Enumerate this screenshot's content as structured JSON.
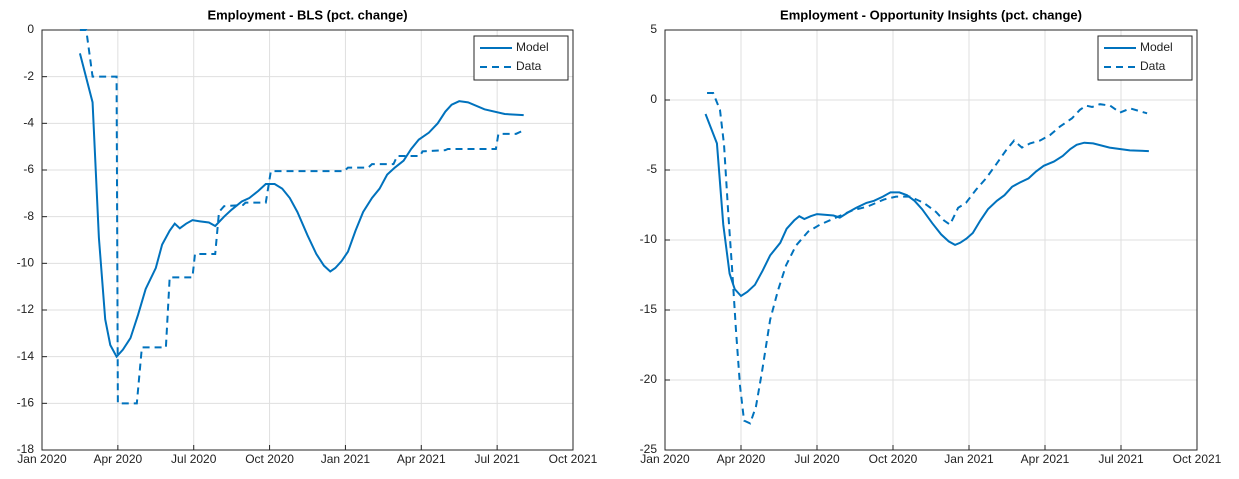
{
  "chart_data": [
    {
      "type": "line",
      "title": "Employment - BLS (pct. change)",
      "xlim": [
        0,
        21
      ],
      "xticks": [
        {
          "value": 0,
          "label": "Jan 2020"
        },
        {
          "value": 3,
          "label": "Apr 2020"
        },
        {
          "value": 6,
          "label": "Jul 2020"
        },
        {
          "value": 9,
          "label": "Oct 2020"
        },
        {
          "value": 12,
          "label": "Jan 2021"
        },
        {
          "value": 15,
          "label": "Apr 2021"
        },
        {
          "value": 18,
          "label": "Jul 2021"
        },
        {
          "value": 21,
          "label": "Oct 2021"
        }
      ],
      "ylim": [
        -18,
        0
      ],
      "yticks": [
        -18,
        -16,
        -14,
        -12,
        -10,
        -8,
        -6,
        -4,
        -2,
        0
      ],
      "grid": true,
      "legend": "top-right",
      "series": [
        {
          "name": "Model",
          "color": "#0072bd",
          "dash": "solid",
          "x": [
            1.5,
            2.0,
            2.25,
            2.5,
            2.7,
            2.95,
            3.2,
            3.5,
            3.8,
            4.1,
            4.5,
            4.75,
            5.05,
            5.25,
            5.45,
            5.7,
            5.95,
            6.25,
            6.6,
            6.85,
            7.2,
            7.5,
            7.9,
            8.2,
            8.55,
            8.85,
            9.2,
            9.5,
            9.8,
            10.1,
            10.5,
            10.85,
            11.15,
            11.4,
            11.6,
            11.85,
            12.1,
            12.4,
            12.7,
            13.05,
            13.35,
            13.65,
            13.95,
            14.3,
            14.6,
            14.9,
            15.3,
            15.65,
            15.95,
            16.2,
            16.5,
            16.85,
            17.5,
            18.3,
            19.05
          ],
          "values": [
            -1,
            -3.1,
            -8.9,
            -12.4,
            -13.5,
            -14,
            -13.7,
            -13.2,
            -12.2,
            -11.1,
            -10.2,
            -9.2,
            -8.6,
            -8.3,
            -8.5,
            -8.3,
            -8.15,
            -8.2,
            -8.25,
            -8.4,
            -8,
            -7.7,
            -7.35,
            -7.2,
            -6.9,
            -6.6,
            -6.6,
            -6.8,
            -7.2,
            -7.8,
            -8.8,
            -9.6,
            -10.1,
            -10.35,
            -10.2,
            -9.9,
            -9.5,
            -8.6,
            -7.8,
            -7.2,
            -6.8,
            -6.2,
            -5.9,
            -5.6,
            -5.1,
            -4.7,
            -4.4,
            -4,
            -3.5,
            -3.2,
            -3.05,
            -3.1,
            -3.4,
            -3.6,
            -3.65
          ]
        },
        {
          "name": "Data",
          "color": "#0072bd",
          "dash": "dashed",
          "x": [
            1.5,
            1.75,
            2.0,
            2.95,
            3.0,
            3.75,
            3.95,
            4.9,
            5.05,
            5.95,
            6.05,
            6.85,
            7.0,
            7.2,
            7.95,
            8.05,
            8.85,
            9.05,
            11.95,
            12.1,
            12.9,
            13.05,
            13.9,
            14.05,
            14.95,
            15.05,
            15.95,
            16.05,
            17.95,
            18.05,
            18.75,
            19.05
          ],
          "values": [
            0,
            0,
            -2,
            -2,
            -16,
            -16,
            -13.6,
            -13.6,
            -10.6,
            -10.6,
            -9.6,
            -9.6,
            -7.8,
            -7.55,
            -7.5,
            -7.4,
            -7.4,
            -6.05,
            -6.05,
            -5.9,
            -5.9,
            -5.75,
            -5.75,
            -5.4,
            -5.4,
            -5.2,
            -5.15,
            -5.1,
            -5.1,
            -4.45,
            -4.45,
            -4.3
          ]
        }
      ]
    },
    {
      "type": "line",
      "title": "Employment - Opportunity Insights (pct. change)",
      "xlim": [
        0,
        21
      ],
      "xticks": [
        {
          "value": 0,
          "label": "Jan 2020"
        },
        {
          "value": 3,
          "label": "Apr 2020"
        },
        {
          "value": 6,
          "label": "Jul 2020"
        },
        {
          "value": 9,
          "label": "Oct 2020"
        },
        {
          "value": 12,
          "label": "Jan 2021"
        },
        {
          "value": 15,
          "label": "Apr 2021"
        },
        {
          "value": 18,
          "label": "Jul 2021"
        },
        {
          "value": 21,
          "label": "Oct 2021"
        }
      ],
      "ylim": [
        -25,
        5
      ],
      "yticks": [
        -25,
        -20,
        -15,
        -10,
        -5,
        0,
        5
      ],
      "grid": true,
      "legend": "top-right",
      "series": [
        {
          "name": "Model",
          "color": "#0072bd",
          "dash": "solid",
          "x": [
            1.6,
            2.05,
            2.3,
            2.55,
            2.75,
            3.0,
            3.25,
            3.55,
            3.85,
            4.15,
            4.55,
            4.8,
            5.1,
            5.3,
            5.5,
            5.75,
            6.0,
            6.3,
            6.65,
            6.9,
            7.25,
            7.55,
            7.95,
            8.25,
            8.6,
            8.9,
            9.25,
            9.55,
            9.85,
            10.15,
            10.55,
            10.9,
            11.2,
            11.45,
            11.65,
            11.9,
            12.15,
            12.45,
            12.75,
            13.1,
            13.4,
            13.7,
            14.0,
            14.35,
            14.65,
            14.95,
            15.35,
            15.7,
            16.0,
            16.25,
            16.55,
            16.9,
            17.55,
            18.35,
            19.1
          ],
          "values": [
            -1,
            -3.1,
            -8.9,
            -12.4,
            -13.5,
            -14,
            -13.7,
            -13.2,
            -12.2,
            -11.1,
            -10.2,
            -9.2,
            -8.6,
            -8.3,
            -8.5,
            -8.3,
            -8.15,
            -8.2,
            -8.25,
            -8.4,
            -8,
            -7.7,
            -7.35,
            -7.2,
            -6.9,
            -6.6,
            -6.6,
            -6.8,
            -7.2,
            -7.8,
            -8.8,
            -9.6,
            -10.1,
            -10.35,
            -10.2,
            -9.9,
            -9.5,
            -8.6,
            -7.8,
            -7.2,
            -6.8,
            -6.2,
            -5.9,
            -5.6,
            -5.1,
            -4.7,
            -4.4,
            -4,
            -3.5,
            -3.2,
            -3.05,
            -3.1,
            -3.4,
            -3.6,
            -3.65
          ]
        },
        {
          "name": "Data",
          "color": "#0072bd",
          "dash": "dashed",
          "x": [
            1.66,
            1.9,
            2.17,
            2.33,
            2.49,
            2.65,
            2.8,
            2.96,
            3.12,
            3.36,
            3.59,
            3.83,
            4.15,
            4.46,
            4.78,
            5.17,
            5.65,
            6.12,
            6.75,
            7.38,
            8.01,
            8.65,
            9.12,
            9.67,
            10.22,
            10.7,
            11.01,
            11.25,
            11.57,
            11.88,
            12.28,
            12.67,
            13.07,
            13.46,
            13.78,
            14.09,
            14.41,
            14.8,
            15.2,
            15.59,
            16.07,
            16.38,
            16.62,
            16.86,
            17.17,
            17.57,
            17.96,
            18.36,
            19.03
          ],
          "values": [
            0.5,
            0.5,
            -0.7,
            -3.2,
            -7.9,
            -12.1,
            -16.4,
            -20.4,
            -22.9,
            -23.1,
            -21.9,
            -19.4,
            -15.7,
            -13.6,
            -11.8,
            -10.4,
            -9.4,
            -8.9,
            -8.4,
            -7.9,
            -7.6,
            -7.1,
            -6.9,
            -6.9,
            -7.35,
            -8,
            -8.6,
            -8.9,
            -7.7,
            -7.35,
            -6.4,
            -5.6,
            -4.6,
            -3.6,
            -2.9,
            -3.4,
            -3.1,
            -2.9,
            -2.5,
            -1.9,
            -1.3,
            -0.7,
            -0.4,
            -0.5,
            -0.3,
            -0.4,
            -0.9,
            -0.6,
            -0.95
          ]
        }
      ]
    }
  ]
}
